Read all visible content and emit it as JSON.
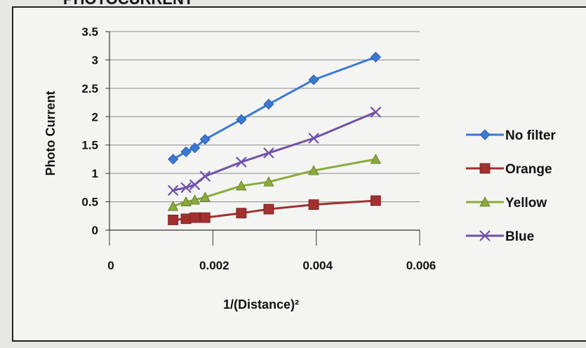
{
  "heading": "PHOTOCURRENT",
  "chart_data": {
    "type": "scatter",
    "title": "",
    "xlabel": "1/(Distance)²",
    "ylabel": "Photo Current",
    "xlim": [
      0,
      0.006
    ],
    "ylim": [
      0,
      3.5
    ],
    "x_ticks": [
      "0",
      "0.002",
      "0.004",
      "0.006"
    ],
    "y_ticks": [
      "0",
      "0.5",
      "1",
      "1.5",
      "2",
      "2.5",
      "3",
      "3.5"
    ],
    "grid": "horizontal",
    "legend_position": "right",
    "x": [
      0.00123,
      0.00148,
      0.00165,
      0.00185,
      0.00255,
      0.00308,
      0.00395,
      0.00515
    ],
    "series": [
      {
        "name": "No filter",
        "marker": "diamond",
        "color": "#3a78d6",
        "values": [
          1.25,
          1.38,
          1.45,
          1.6,
          1.95,
          2.22,
          2.65,
          3.05
        ]
      },
      {
        "name": "Orange",
        "marker": "square",
        "color": "#a2302f",
        "values": [
          0.18,
          0.2,
          0.22,
          0.22,
          0.3,
          0.37,
          0.45,
          0.52
        ]
      },
      {
        "name": "Yellow",
        "marker": "triangle",
        "color": "#8aaa3a",
        "values": [
          0.42,
          0.5,
          0.53,
          0.58,
          0.78,
          0.85,
          1.05,
          1.25
        ]
      },
      {
        "name": "Blue",
        "marker": "x",
        "color": "#7050a8",
        "values": [
          0.7,
          0.75,
          0.8,
          0.95,
          1.2,
          1.36,
          1.62,
          2.08
        ]
      }
    ]
  }
}
